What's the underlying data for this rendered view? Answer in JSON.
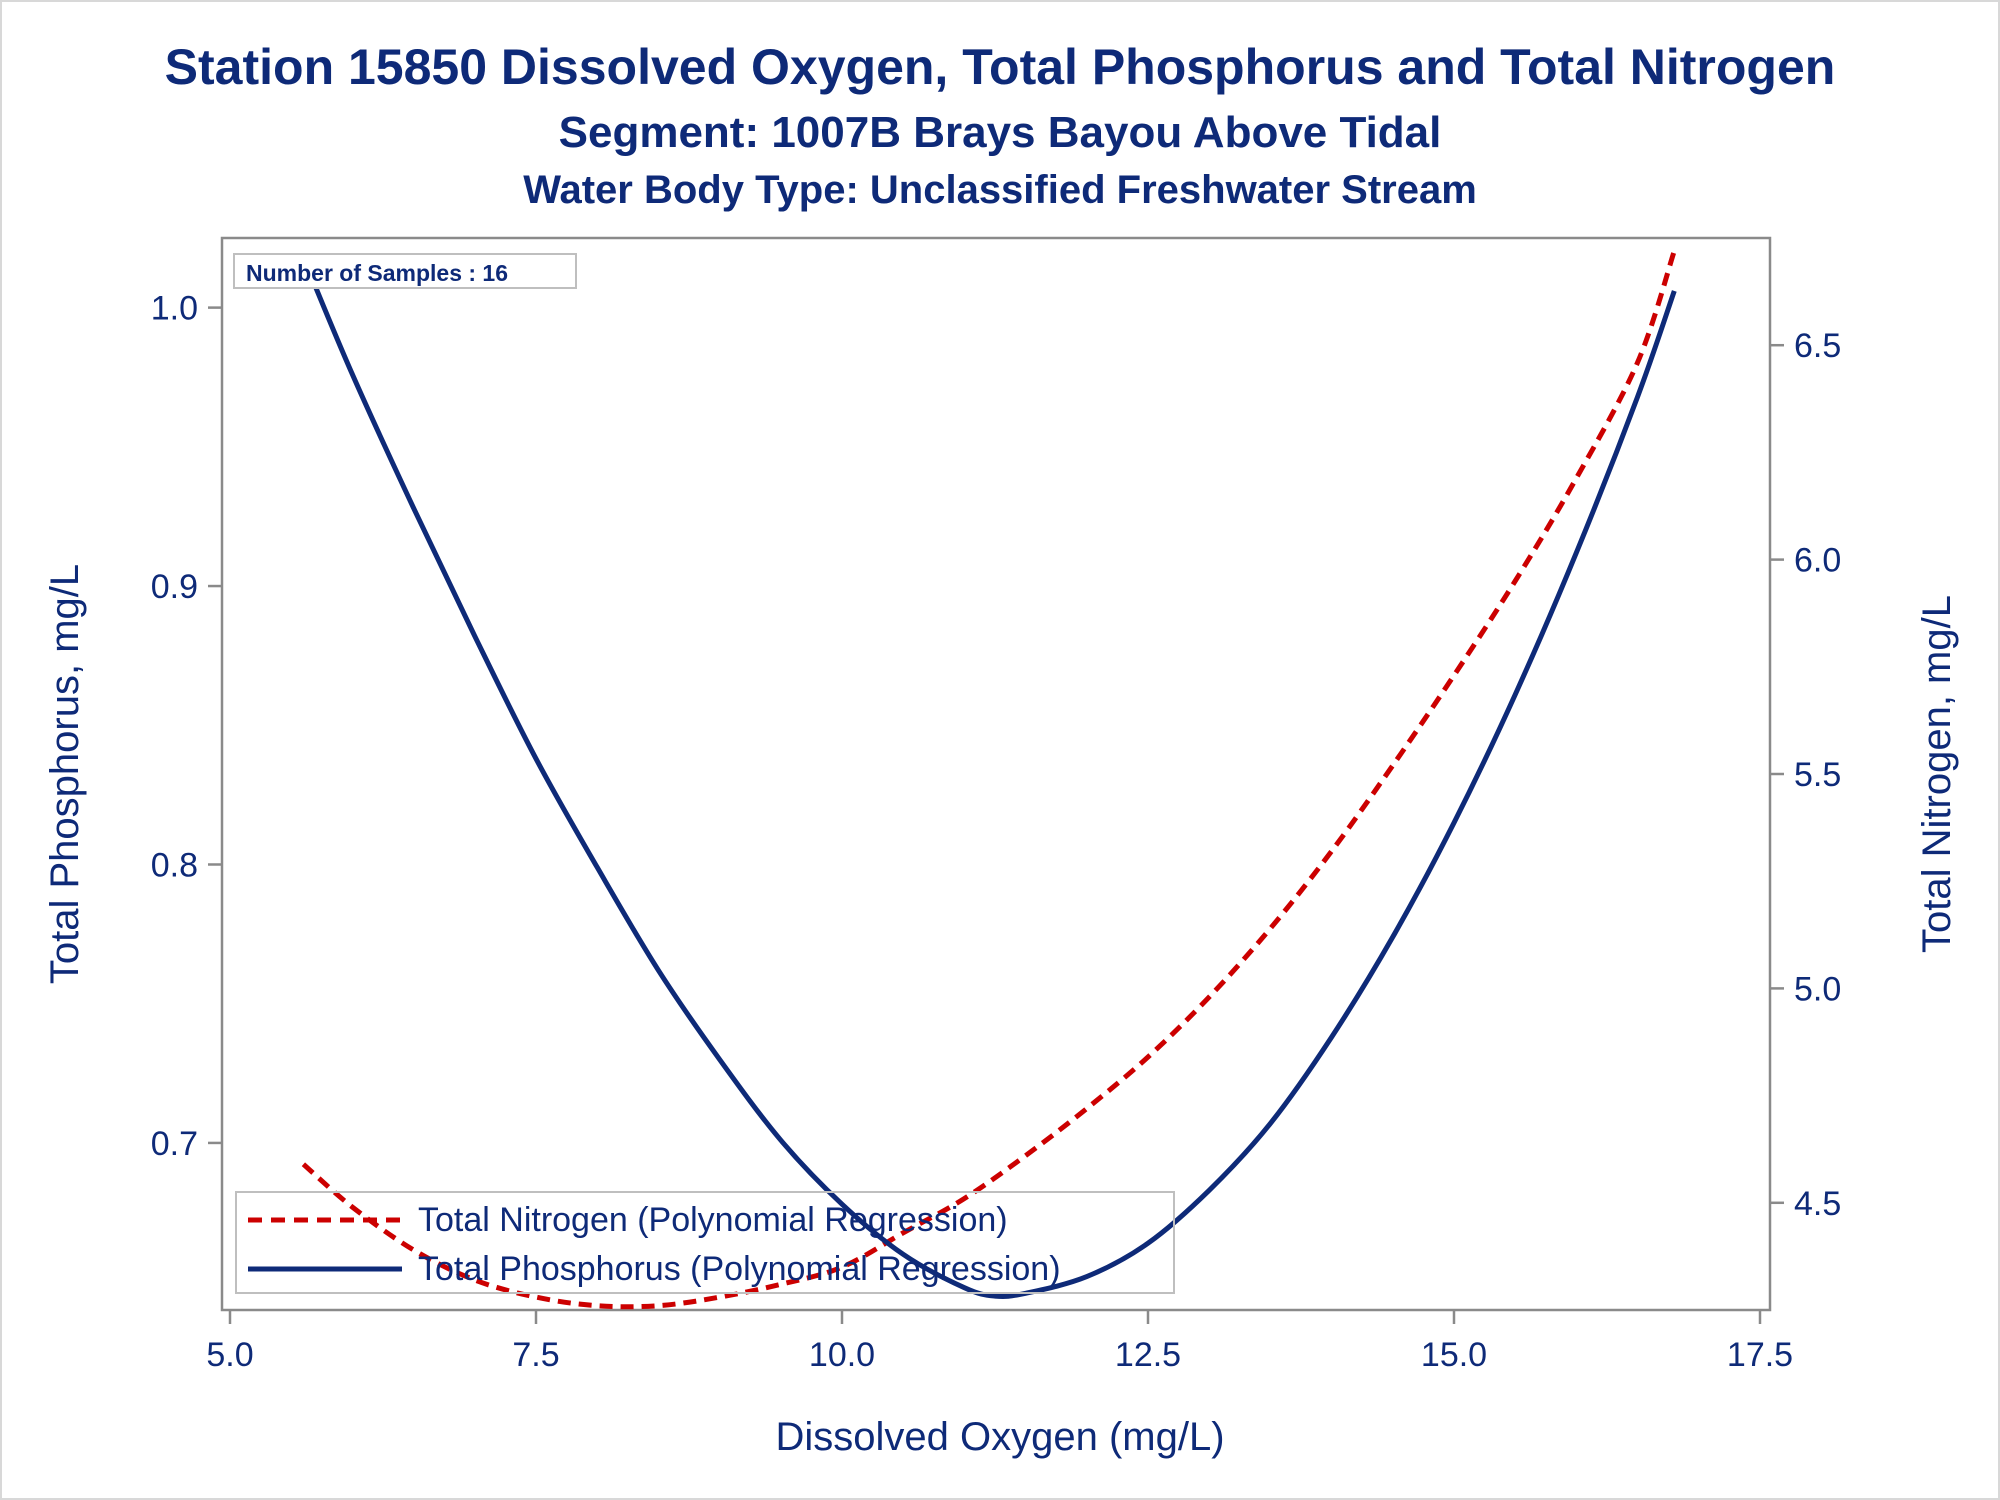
{
  "title": "Station 15850  Dissolved Oxygen, Total Phosphorus and Total Nitrogen",
  "subtitle": "Segment: 1007B  Brays Bayou Above Tidal",
  "subtitle2": "Water Body Type: Unclassified Freshwater Stream",
  "inset_label": "Number of Samples : 16",
  "colors": {
    "text": "#0e2a78",
    "phosphorus": "#0e2a78",
    "nitrogen": "#cc0000",
    "frame": "#8a8a8a"
  },
  "chart_data": {
    "type": "line",
    "title": "Station 15850  Dissolved Oxygen, Total Phosphorus and Total Nitrogen",
    "xlabel": "Dissolved Oxygen (mg/L)",
    "ylabel": "Total Phosphorus, mg/L",
    "y2label": "Total Nitrogen, mg/L",
    "xlim": [
      5.0,
      17.5
    ],
    "ylim": [
      0.64,
      1.025
    ],
    "y2lim": [
      4.25,
      6.75
    ],
    "xticks": [
      "5.0",
      "7.5",
      "10.0",
      "12.5",
      "15.0",
      "17.5"
    ],
    "yticks": [
      "0.7",
      "0.8",
      "0.9",
      "1.0"
    ],
    "y2ticks": [
      "4.5",
      "5.0",
      "5.5",
      "6.0",
      "6.5"
    ],
    "grid": false,
    "legend_position": "bottom-left",
    "series": [
      {
        "name": "Total Nitrogen (Polynomial Regression)",
        "axis": "right",
        "style": "dashed",
        "color": "#cc0000",
        "x": [
          5.6,
          6.0,
          6.5,
          7.0,
          7.5,
          8.0,
          8.5,
          9.0,
          9.5,
          10.0,
          10.5,
          11.0,
          11.5,
          12.0,
          12.5,
          13.0,
          13.5,
          14.0,
          14.5,
          15.0,
          15.5,
          16.0,
          16.5,
          16.8
        ],
        "values": [
          4.59,
          4.49,
          4.39,
          4.32,
          4.28,
          4.26,
          4.26,
          4.28,
          4.31,
          4.35,
          4.43,
          4.51,
          4.61,
          4.72,
          4.84,
          4.98,
          5.14,
          5.32,
          5.52,
          5.73,
          5.95,
          6.19,
          6.46,
          6.72
        ]
      },
      {
        "name": "Total Phosphorus (Polynomial Regression)",
        "axis": "left",
        "style": "solid",
        "color": "#0e2a78",
        "x": [
          5.6,
          6.0,
          6.5,
          7.0,
          7.5,
          8.0,
          8.5,
          9.0,
          9.5,
          10.0,
          10.5,
          11.0,
          11.25,
          11.5,
          12.0,
          12.5,
          13.0,
          13.5,
          14.0,
          14.5,
          15.0,
          15.5,
          16.0,
          16.5,
          16.8
        ],
        "values": [
          1.018,
          0.976,
          0.928,
          0.882,
          0.838,
          0.799,
          0.762,
          0.73,
          0.701,
          0.678,
          0.66,
          0.648,
          0.645,
          0.646,
          0.652,
          0.664,
          0.683,
          0.707,
          0.738,
          0.774,
          0.815,
          0.861,
          0.912,
          0.968,
          1.006
        ]
      }
    ]
  }
}
